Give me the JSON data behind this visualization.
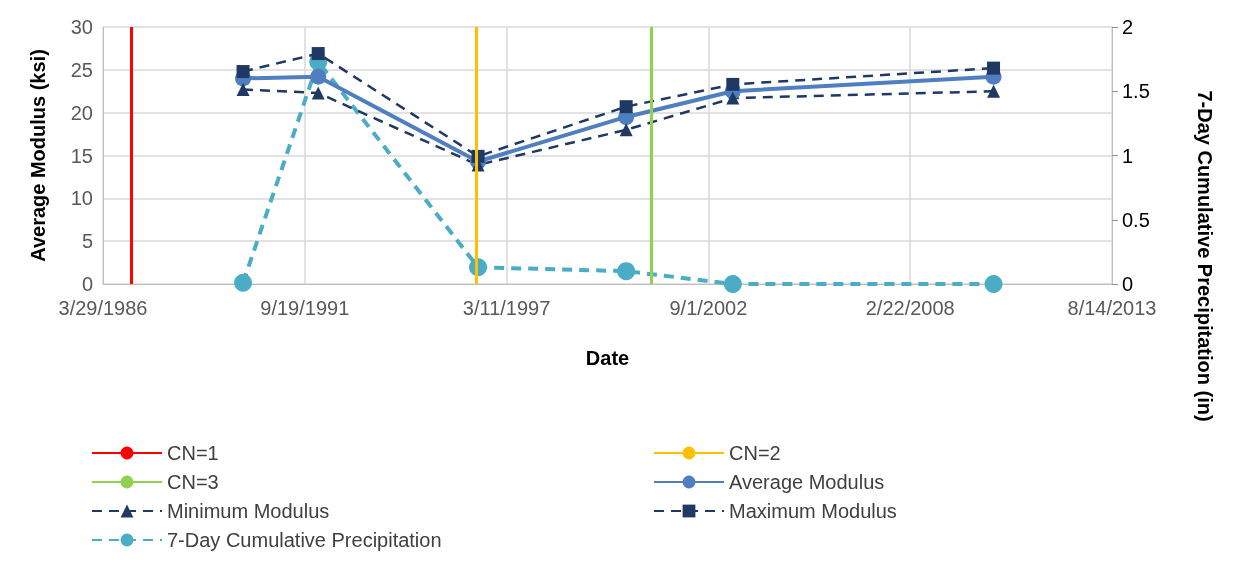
{
  "chart_data": {
    "type": "line",
    "xlabel": "Date",
    "ylabel": "Average Modulus (ksi)",
    "y2label": "7-Day Cumulative Precipitation (in)",
    "xlim": [
      "1986-03-29",
      "2013-08-14"
    ],
    "xticks": [
      {
        "value": "1986-03-29",
        "label": "3/29/1986"
      },
      {
        "value": "1991-09-19",
        "label": "9/19/1991"
      },
      {
        "value": "1997-03-11",
        "label": "3/11/1997"
      },
      {
        "value": "2002-09-01",
        "label": "9/1/2002"
      },
      {
        "value": "2008-02-22",
        "label": "2/22/2008"
      },
      {
        "value": "2013-08-14",
        "label": "8/14/2013"
      }
    ],
    "ylim": [
      0,
      30
    ],
    "yticks": [
      0,
      5,
      10,
      15,
      20,
      25,
      30
    ],
    "y2lim": [
      0,
      2
    ],
    "y2ticks": [
      0,
      0.5,
      1,
      1.5,
      2
    ],
    "grid": true,
    "legend": "bottom",
    "x": [
      "1990-01-15",
      "1992-01-30",
      "1996-06-01",
      "2000-06-08",
      "2003-05-01",
      "2010-05-28"
    ],
    "ref_lines": [
      {
        "axis": "x",
        "value": "1987-01-01",
        "label": "CN=1",
        "color": "#ff0000"
      },
      {
        "axis": "x",
        "value": "1996-05-10",
        "label": "CN=2",
        "color": "#ffc000"
      },
      {
        "axis": "x",
        "value": "2001-02-15",
        "label": "CN=3",
        "color": "#92d050"
      }
    ],
    "series": [
      {
        "name": "Average Modulus",
        "color": "#4f7fc0",
        "marker": "circle",
        "line_style": "solid",
        "values": [
          24.0,
          24.2,
          14.3,
          19.5,
          22.5,
          24.2
        ]
      },
      {
        "name": "Minimum Modulus",
        "color": "#1f3864",
        "marker": "triangle",
        "line_style": "dashed",
        "values": [
          22.7,
          22.3,
          13.9,
          18.0,
          21.7,
          22.5
        ]
      },
      {
        "name": "Maximum Modulus",
        "color": "#1f3864",
        "marker": "square",
        "line_style": "dashed",
        "values": [
          24.8,
          26.9,
          14.9,
          20.7,
          23.3,
          25.2
        ]
      },
      {
        "name": "7-Day Cumulative Precipitation",
        "color": "#4bacc6",
        "marker": "circle",
        "line_style": "dashed",
        "axis": "y2",
        "values": [
          0.01,
          1.73,
          0.13,
          0.1,
          0,
          0
        ]
      }
    ]
  }
}
